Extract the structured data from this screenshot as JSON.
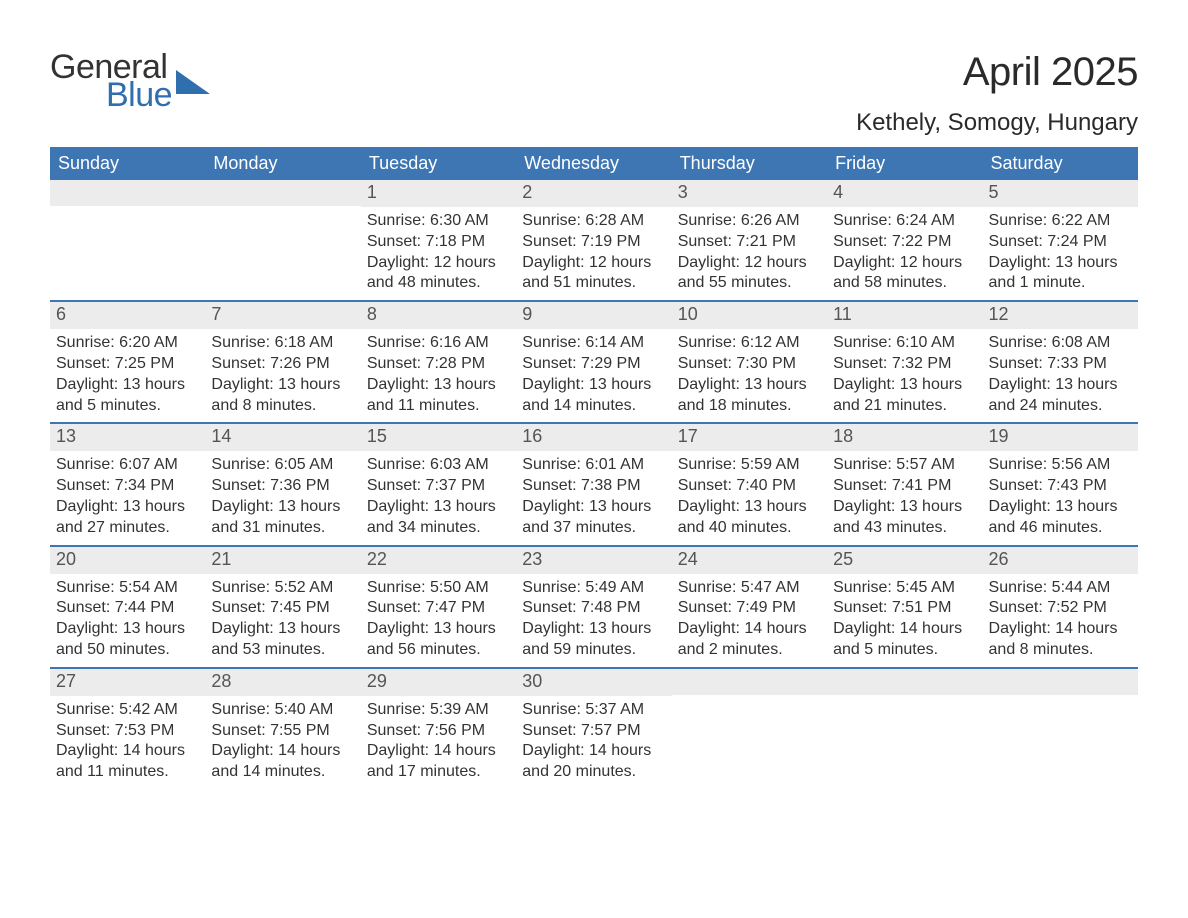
{
  "brand": {
    "line1": "General",
    "line2": "Blue",
    "shape_color": "#2f6fad",
    "line1_color": "#333333",
    "line2_color": "#2f6fad"
  },
  "title": "April 2025",
  "location": "Kethely, Somogy, Hungary",
  "colors": {
    "header_bg": "#3d76b3",
    "header_text": "#ffffff",
    "daynum_bg": "#ececec",
    "daynum_text": "#555555",
    "body_text": "#333333",
    "week_border": "#3d76b3",
    "page_bg": "#ffffff"
  },
  "typography": {
    "month_title_fontsize": 40,
    "location_fontsize": 24,
    "weekday_fontsize": 18,
    "daynum_fontsize": 18,
    "body_fontsize": 16
  },
  "weekdays": [
    "Sunday",
    "Monday",
    "Tuesday",
    "Wednesday",
    "Thursday",
    "Friday",
    "Saturday"
  ],
  "weeks": [
    [
      null,
      null,
      {
        "n": "1",
        "sunrise": "Sunrise: 6:30 AM",
        "sunset": "Sunset: 7:18 PM",
        "daylight1": "Daylight: 12 hours",
        "daylight2": "and 48 minutes."
      },
      {
        "n": "2",
        "sunrise": "Sunrise: 6:28 AM",
        "sunset": "Sunset: 7:19 PM",
        "daylight1": "Daylight: 12 hours",
        "daylight2": "and 51 minutes."
      },
      {
        "n": "3",
        "sunrise": "Sunrise: 6:26 AM",
        "sunset": "Sunset: 7:21 PM",
        "daylight1": "Daylight: 12 hours",
        "daylight2": "and 55 minutes."
      },
      {
        "n": "4",
        "sunrise": "Sunrise: 6:24 AM",
        "sunset": "Sunset: 7:22 PM",
        "daylight1": "Daylight: 12 hours",
        "daylight2": "and 58 minutes."
      },
      {
        "n": "5",
        "sunrise": "Sunrise: 6:22 AM",
        "sunset": "Sunset: 7:24 PM",
        "daylight1": "Daylight: 13 hours",
        "daylight2": "and 1 minute."
      }
    ],
    [
      {
        "n": "6",
        "sunrise": "Sunrise: 6:20 AM",
        "sunset": "Sunset: 7:25 PM",
        "daylight1": "Daylight: 13 hours",
        "daylight2": "and 5 minutes."
      },
      {
        "n": "7",
        "sunrise": "Sunrise: 6:18 AM",
        "sunset": "Sunset: 7:26 PM",
        "daylight1": "Daylight: 13 hours",
        "daylight2": "and 8 minutes."
      },
      {
        "n": "8",
        "sunrise": "Sunrise: 6:16 AM",
        "sunset": "Sunset: 7:28 PM",
        "daylight1": "Daylight: 13 hours",
        "daylight2": "and 11 minutes."
      },
      {
        "n": "9",
        "sunrise": "Sunrise: 6:14 AM",
        "sunset": "Sunset: 7:29 PM",
        "daylight1": "Daylight: 13 hours",
        "daylight2": "and 14 minutes."
      },
      {
        "n": "10",
        "sunrise": "Sunrise: 6:12 AM",
        "sunset": "Sunset: 7:30 PM",
        "daylight1": "Daylight: 13 hours",
        "daylight2": "and 18 minutes."
      },
      {
        "n": "11",
        "sunrise": "Sunrise: 6:10 AM",
        "sunset": "Sunset: 7:32 PM",
        "daylight1": "Daylight: 13 hours",
        "daylight2": "and 21 minutes."
      },
      {
        "n": "12",
        "sunrise": "Sunrise: 6:08 AM",
        "sunset": "Sunset: 7:33 PM",
        "daylight1": "Daylight: 13 hours",
        "daylight2": "and 24 minutes."
      }
    ],
    [
      {
        "n": "13",
        "sunrise": "Sunrise: 6:07 AM",
        "sunset": "Sunset: 7:34 PM",
        "daylight1": "Daylight: 13 hours",
        "daylight2": "and 27 minutes."
      },
      {
        "n": "14",
        "sunrise": "Sunrise: 6:05 AM",
        "sunset": "Sunset: 7:36 PM",
        "daylight1": "Daylight: 13 hours",
        "daylight2": "and 31 minutes."
      },
      {
        "n": "15",
        "sunrise": "Sunrise: 6:03 AM",
        "sunset": "Sunset: 7:37 PM",
        "daylight1": "Daylight: 13 hours",
        "daylight2": "and 34 minutes."
      },
      {
        "n": "16",
        "sunrise": "Sunrise: 6:01 AM",
        "sunset": "Sunset: 7:38 PM",
        "daylight1": "Daylight: 13 hours",
        "daylight2": "and 37 minutes."
      },
      {
        "n": "17",
        "sunrise": "Sunrise: 5:59 AM",
        "sunset": "Sunset: 7:40 PM",
        "daylight1": "Daylight: 13 hours",
        "daylight2": "and 40 minutes."
      },
      {
        "n": "18",
        "sunrise": "Sunrise: 5:57 AM",
        "sunset": "Sunset: 7:41 PM",
        "daylight1": "Daylight: 13 hours",
        "daylight2": "and 43 minutes."
      },
      {
        "n": "19",
        "sunrise": "Sunrise: 5:56 AM",
        "sunset": "Sunset: 7:43 PM",
        "daylight1": "Daylight: 13 hours",
        "daylight2": "and 46 minutes."
      }
    ],
    [
      {
        "n": "20",
        "sunrise": "Sunrise: 5:54 AM",
        "sunset": "Sunset: 7:44 PM",
        "daylight1": "Daylight: 13 hours",
        "daylight2": "and 50 minutes."
      },
      {
        "n": "21",
        "sunrise": "Sunrise: 5:52 AM",
        "sunset": "Sunset: 7:45 PM",
        "daylight1": "Daylight: 13 hours",
        "daylight2": "and 53 minutes."
      },
      {
        "n": "22",
        "sunrise": "Sunrise: 5:50 AM",
        "sunset": "Sunset: 7:47 PM",
        "daylight1": "Daylight: 13 hours",
        "daylight2": "and 56 minutes."
      },
      {
        "n": "23",
        "sunrise": "Sunrise: 5:49 AM",
        "sunset": "Sunset: 7:48 PM",
        "daylight1": "Daylight: 13 hours",
        "daylight2": "and 59 minutes."
      },
      {
        "n": "24",
        "sunrise": "Sunrise: 5:47 AM",
        "sunset": "Sunset: 7:49 PM",
        "daylight1": "Daylight: 14 hours",
        "daylight2": "and 2 minutes."
      },
      {
        "n": "25",
        "sunrise": "Sunrise: 5:45 AM",
        "sunset": "Sunset: 7:51 PM",
        "daylight1": "Daylight: 14 hours",
        "daylight2": "and 5 minutes."
      },
      {
        "n": "26",
        "sunrise": "Sunrise: 5:44 AM",
        "sunset": "Sunset: 7:52 PM",
        "daylight1": "Daylight: 14 hours",
        "daylight2": "and 8 minutes."
      }
    ],
    [
      {
        "n": "27",
        "sunrise": "Sunrise: 5:42 AM",
        "sunset": "Sunset: 7:53 PM",
        "daylight1": "Daylight: 14 hours",
        "daylight2": "and 11 minutes."
      },
      {
        "n": "28",
        "sunrise": "Sunrise: 5:40 AM",
        "sunset": "Sunset: 7:55 PM",
        "daylight1": "Daylight: 14 hours",
        "daylight2": "and 14 minutes."
      },
      {
        "n": "29",
        "sunrise": "Sunrise: 5:39 AM",
        "sunset": "Sunset: 7:56 PM",
        "daylight1": "Daylight: 14 hours",
        "daylight2": "and 17 minutes."
      },
      {
        "n": "30",
        "sunrise": "Sunrise: 5:37 AM",
        "sunset": "Sunset: 7:57 PM",
        "daylight1": "Daylight: 14 hours",
        "daylight2": "and 20 minutes."
      },
      null,
      null,
      null
    ]
  ]
}
